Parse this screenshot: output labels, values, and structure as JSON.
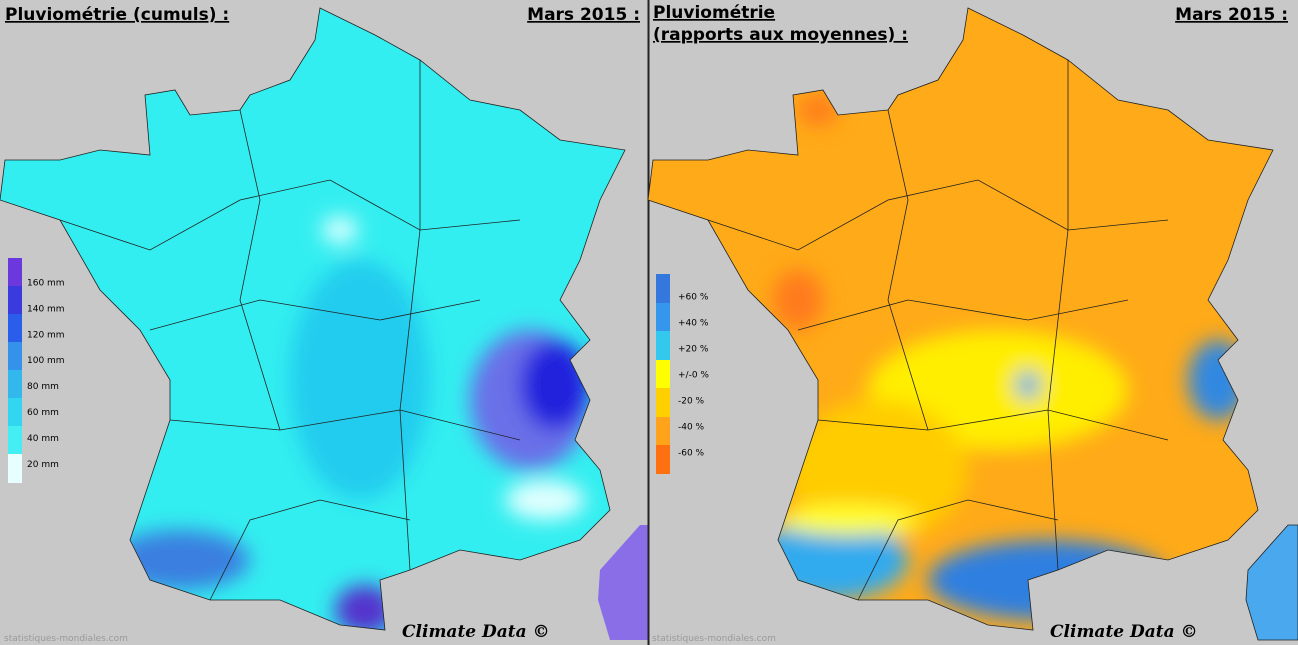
{
  "left": {
    "title": "Pluviométrie (cumuls) :",
    "date": "Mars 2015 :",
    "legend": [
      "160 mm",
      "140 mm",
      "120 mm",
      "100 mm",
      "80 mm",
      "60 mm",
      "40 mm",
      "20 mm"
    ],
    "credit": "Climate Data ©",
    "watermark": "statistiques-mondiales.com"
  },
  "right": {
    "title_lines": [
      "Pluviométrie",
      "(rapports aux moyennes) :"
    ],
    "date": "Mars 2015 :",
    "legend": [
      "+60 %",
      "+40 %",
      "+20 %",
      "+/-0 %",
      "-20 %",
      "-40 %",
      "-60 %"
    ],
    "credit": "Climate Data ©",
    "watermark": "statistiques-mondiales.com"
  }
}
